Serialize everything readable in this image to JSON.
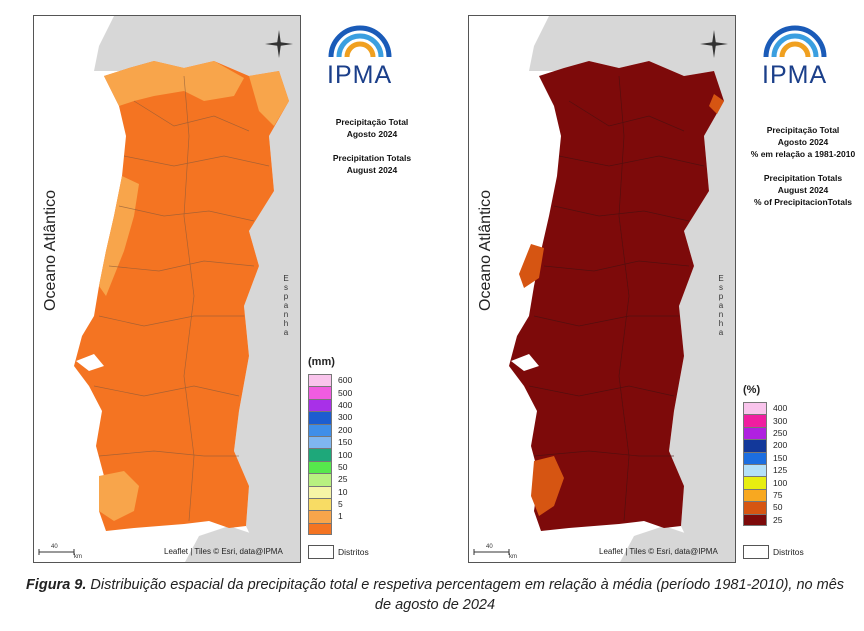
{
  "left_panel": {
    "ocean_label": "Oceano Atlântico",
    "country_label": "Espanha",
    "logo_text": "IPMA",
    "title_pt_1": "Precipitação Total",
    "title_pt_2": "Agosto 2024",
    "title_en_1": "Precipitation Totals",
    "title_en_2": "August 2024",
    "legend_unit": "(mm)",
    "legend": [
      {
        "label": "600",
        "color": "#f9c4ec"
      },
      {
        "label": "500",
        "color": "#f05ce0"
      },
      {
        "label": "400",
        "color": "#a830e8"
      },
      {
        "label": "300",
        "color": "#1c5dd0"
      },
      {
        "label": "200",
        "color": "#3f8ee8"
      },
      {
        "label": "150",
        "color": "#7fb6f0"
      },
      {
        "label": "100",
        "color": "#1ea87a"
      },
      {
        "label": "50",
        "color": "#56e84c"
      },
      {
        "label": "25",
        "color": "#b8f080"
      },
      {
        "label": "10",
        "color": "#f6f5a6"
      },
      {
        "label": "5",
        "color": "#f8dc64"
      },
      {
        "label": "1",
        "color": "#f8a54b"
      },
      {
        "label": "",
        "color": "#f47422"
      }
    ],
    "attribution": "Leaflet | Tiles © Esri, data@IPMA",
    "districts_label": "Distritos",
    "scale_label": "40",
    "scale_unit": "km",
    "main_color": "#f47422",
    "light_color": "#f8a54b"
  },
  "right_panel": {
    "ocean_label": "Oceano Atlântico",
    "country_label": "Espanha",
    "logo_text": "IPMA",
    "title_pt_1": "Precipitação Total",
    "title_pt_2": "Agosto 2024",
    "title_pt_3": "% em relação a 1981-2010",
    "title_en_1": "Precipitation Totals",
    "title_en_2": "August 2024",
    "title_en_3": "% of PrecipitacionTotals",
    "legend_unit": "(%)",
    "legend": [
      {
        "label": "400",
        "color": "#f9c4ec"
      },
      {
        "label": "300",
        "color": "#f01ea0"
      },
      {
        "label": "250",
        "color": "#b020e0"
      },
      {
        "label": "200",
        "color": "#12389a"
      },
      {
        "label": "150",
        "color": "#1c6ee0"
      },
      {
        "label": "125",
        "color": "#b4e0f8"
      },
      {
        "label": "100",
        "color": "#e8ee10"
      },
      {
        "label": "75",
        "color": "#f8a820"
      },
      {
        "label": "50",
        "color": "#d65512"
      },
      {
        "label": "25",
        "color": "#7d0a0a"
      }
    ],
    "attribution": "Leaflet | Tiles © Esri, data@IPMA",
    "districts_label": "Distritos",
    "scale_label": "40",
    "scale_unit": "km",
    "main_color": "#7d0a0a",
    "light_color": "#d65512"
  },
  "figure_caption": {
    "label": "Figura 9.",
    "text": " Distribuição espacial da precipitação total e respetiva percentagem em relação à média (período 1981-2010), no mês de agosto de 2024"
  }
}
